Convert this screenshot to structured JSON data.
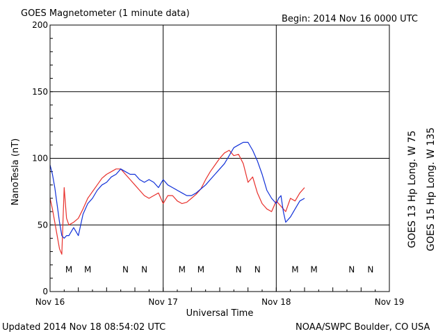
{
  "header": {
    "title": "GOES Magnetometer (1 minute data)",
    "begin": "Begin:  2014 Nov 16 0000 UTC"
  },
  "footer": {
    "updated": "Updated 2014 Nov 18 08:54:02 UTC",
    "credit": "NOAA/SWPC Boulder, CO USA"
  },
  "colors": {
    "goes13": "#e8302c",
    "goes15": "#1030d8",
    "grid": "#000000"
  },
  "chart_data": {
    "type": "line",
    "title": "GOES Magnetometer (1 minute data)",
    "xlabel": "Universal Time",
    "ylabel": "NanoTesla (nT)",
    "xlim": [
      0,
      72
    ],
    "ylim": [
      0,
      200
    ],
    "xunit": "hours since 2014 Nov 16 0000 UTC",
    "x_ticks": [
      {
        "x": 0,
        "label": "Nov 16"
      },
      {
        "x": 24,
        "label": "Nov 17"
      },
      {
        "x": 48,
        "label": "Nov 18"
      },
      {
        "x": 72,
        "label": "Nov 19"
      }
    ],
    "y_ticks": [
      0,
      50,
      100,
      150,
      200
    ],
    "grid": true,
    "series": [
      {
        "name": "GOES 13 Hp  Long. W 75",
        "color": "#e8302c",
        "x": [
          0,
          0.5,
          1,
          1.5,
          2,
          2.5,
          3,
          3.5,
          4,
          5,
          6,
          7,
          8,
          9,
          10,
          11,
          12,
          13,
          14,
          15,
          16,
          17,
          18,
          19,
          20,
          21,
          22,
          23,
          24,
          25,
          26,
          27,
          28,
          29,
          30,
          31,
          32,
          33,
          34,
          35,
          36,
          37,
          38,
          39,
          40,
          41,
          42,
          43,
          44,
          45,
          46,
          47,
          48,
          48.5,
          49,
          49.5,
          50,
          51,
          52,
          53,
          54
        ],
        "y": [
          70,
          62,
          52,
          42,
          32,
          28,
          78,
          55,
          50,
          52,
          55,
          62,
          70,
          75,
          80,
          85,
          88,
          90,
          92,
          92,
          88,
          84,
          80,
          76,
          72,
          70,
          72,
          74,
          66,
          72,
          72,
          68,
          66,
          67,
          70,
          73,
          77,
          84,
          90,
          95,
          100,
          104,
          106,
          102,
          103,
          96,
          82,
          86,
          74,
          66,
          62,
          60,
          68,
          66,
          64,
          62,
          60,
          70,
          68,
          74,
          78
        ]
      },
      {
        "name": "GOES 15 Hp  Long. W 135",
        "color": "#1030d8",
        "x": [
          0,
          0.5,
          1,
          1.5,
          2,
          2.5,
          3,
          3.5,
          4,
          5,
          6,
          7,
          8,
          9,
          10,
          11,
          12,
          13,
          14,
          15,
          16,
          17,
          18,
          19,
          20,
          21,
          22,
          23,
          24,
          25,
          26,
          27,
          28,
          29,
          30,
          31,
          32,
          33,
          34,
          35,
          36,
          37,
          38,
          39,
          40,
          41,
          42,
          43,
          44,
          45,
          46,
          47,
          48,
          48.5,
          49,
          49.5,
          50,
          51,
          52,
          53,
          54
        ],
        "y": [
          95,
          88,
          78,
          65,
          52,
          42,
          40,
          42,
          42,
          48,
          42,
          58,
          66,
          70,
          76,
          80,
          82,
          86,
          88,
          92,
          90,
          88,
          88,
          84,
          82,
          84,
          82,
          78,
          84,
          80,
          78,
          76,
          74,
          72,
          72,
          74,
          77,
          80,
          84,
          88,
          92,
          96,
          102,
          108,
          110,
          112,
          112,
          106,
          98,
          88,
          76,
          70,
          66,
          70,
          72,
          60,
          52,
          56,
          62,
          68,
          70
        ]
      }
    ],
    "markers": [
      {
        "x": 4,
        "label": "M",
        "series": 0
      },
      {
        "x": 8,
        "label": "M",
        "series": 1
      },
      {
        "x": 16,
        "label": "N",
        "series": 0
      },
      {
        "x": 20,
        "label": "N",
        "series": 1
      },
      {
        "x": 28,
        "label": "M",
        "series": 0
      },
      {
        "x": 32,
        "label": "M",
        "series": 1
      },
      {
        "x": 40,
        "label": "N",
        "series": 0
      },
      {
        "x": 44,
        "label": "N",
        "series": 1
      },
      {
        "x": 52,
        "label": "M",
        "series": 0
      },
      {
        "x": 56,
        "label": "M",
        "series": 1
      },
      {
        "x": 64,
        "label": "N",
        "series": 0
      },
      {
        "x": 68,
        "label": "N",
        "series": 1
      }
    ],
    "marker_y": 17
  }
}
